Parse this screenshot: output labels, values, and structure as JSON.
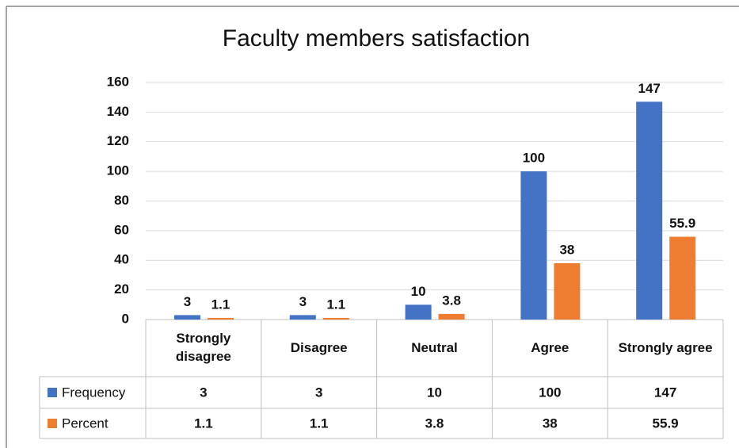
{
  "chart_data": {
    "type": "bar",
    "title": "Faculty members satisfaction",
    "categories": [
      "Strongly disagree",
      "Disagree",
      "Neutral",
      "Agree",
      "Strongly agree"
    ],
    "series": [
      {
        "name": "Frequency",
        "color": "#4472c4",
        "values": [
          3,
          3,
          10,
          100,
          147
        ]
      },
      {
        "name": "Percent",
        "color": "#ed7d31",
        "values": [
          1.1,
          1.1,
          3.8,
          38,
          55.9
        ]
      }
    ],
    "ylim": [
      0,
      160
    ],
    "yticks": [
      0,
      20,
      40,
      60,
      80,
      100,
      120,
      140,
      160
    ],
    "grid": true,
    "data_table": true
  }
}
